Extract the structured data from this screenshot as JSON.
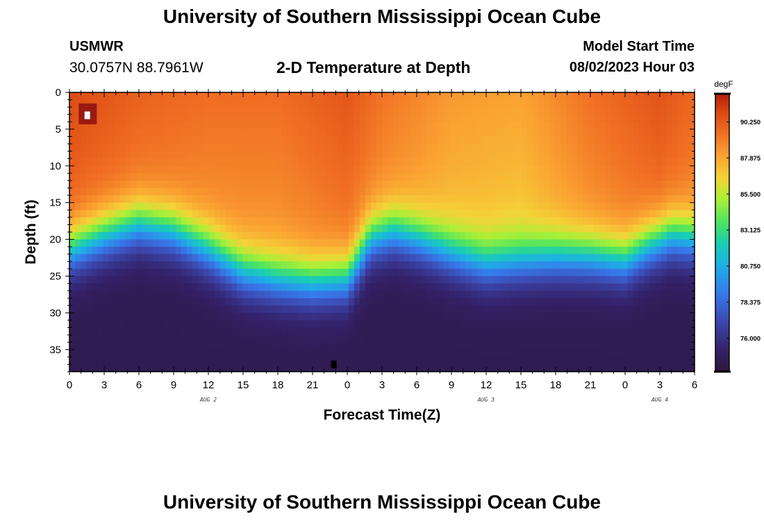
{
  "page": {
    "title": "University of Southern Mississippi Ocean Cube",
    "footer_title": "University of Southern Mississippi Ocean Cube",
    "station": "USMWR",
    "coords": "30.0757N  88.7961W",
    "subtitle": "2-D Temperature at Depth",
    "model_label": "Model Start Time",
    "model_time": "08/02/2023 Hour 03"
  },
  "chart_data": {
    "type": "heatmap",
    "title": "2-D Temperature at Depth",
    "xlabel": "Forecast Time(Z)",
    "ylabel": "Depth (ft)",
    "x_ticks": [
      "0",
      "3",
      "6",
      "9",
      "12",
      "15",
      "18",
      "21",
      "0",
      "3",
      "6",
      "9",
      "12",
      "15",
      "18",
      "21",
      "0",
      "3",
      "6"
    ],
    "x_tick_hours": [
      0,
      3,
      6,
      9,
      12,
      15,
      18,
      21,
      24,
      27,
      30,
      33,
      36,
      39,
      42,
      45,
      48,
      51,
      54
    ],
    "day_labels": [
      {
        "text": "AUG 2",
        "hour": 12
      },
      {
        "text": "AUG 3",
        "hour": 36
      },
      {
        "text": "AUG 4",
        "hour": 51
      }
    ],
    "xlim_hours": [
      0,
      54
    ],
    "y_ticks": [
      0,
      5,
      10,
      15,
      20,
      25,
      30,
      35
    ],
    "ylim": [
      0,
      38
    ],
    "colorbar": {
      "unit": "degF",
      "ticks": [
        "90.250",
        "87.875",
        "85.500",
        "83.125",
        "80.750",
        "78.375",
        "76.000"
      ],
      "tick_values": [
        90.25,
        87.875,
        85.5,
        83.125,
        80.75,
        78.375,
        76.0
      ],
      "range": [
        73.8,
        92.1
      ]
    },
    "thermocline_depth_ft": [
      {
        "hour": 0,
        "depth": 21.5
      },
      {
        "hour": 3,
        "depth": 19.5
      },
      {
        "hour": 6,
        "depth": 18.0
      },
      {
        "hour": 9,
        "depth": 19.0
      },
      {
        "hour": 12,
        "depth": 21.5
      },
      {
        "hour": 15,
        "depth": 24.5
      },
      {
        "hour": 18,
        "depth": 25.5
      },
      {
        "hour": 21,
        "depth": 26.0
      },
      {
        "hour": 24,
        "depth": 25.5
      },
      {
        "hour": 26,
        "depth": 20.0
      },
      {
        "hour": 28,
        "depth": 19.0
      },
      {
        "hour": 30,
        "depth": 20.0
      },
      {
        "hour": 33,
        "depth": 22.0
      },
      {
        "hour": 36,
        "depth": 23.5
      },
      {
        "hour": 39,
        "depth": 23.0
      },
      {
        "hour": 42,
        "depth": 22.5
      },
      {
        "hour": 45,
        "depth": 22.5
      },
      {
        "hour": 48,
        "depth": 23.0
      },
      {
        "hour": 50,
        "depth": 21.0
      },
      {
        "hour": 52,
        "depth": 19.5
      },
      {
        "hour": 54,
        "depth": 20.0
      }
    ],
    "surface_temperature_degF": [
      {
        "hour": 0,
        "temp": 90.8
      },
      {
        "hour": 6,
        "temp": 90.0
      },
      {
        "hour": 12,
        "temp": 89.6
      },
      {
        "hour": 18,
        "temp": 89.6
      },
      {
        "hour": 24,
        "temp": 90.4
      },
      {
        "hour": 27,
        "temp": 89.4
      },
      {
        "hour": 33,
        "temp": 88.3
      },
      {
        "hour": 39,
        "temp": 88.0
      },
      {
        "hour": 45,
        "temp": 89.5
      },
      {
        "hour": 51,
        "temp": 90.5
      },
      {
        "hour": 54,
        "temp": 89.8
      }
    ],
    "bottom_temperature_degF": 74.5
  }
}
